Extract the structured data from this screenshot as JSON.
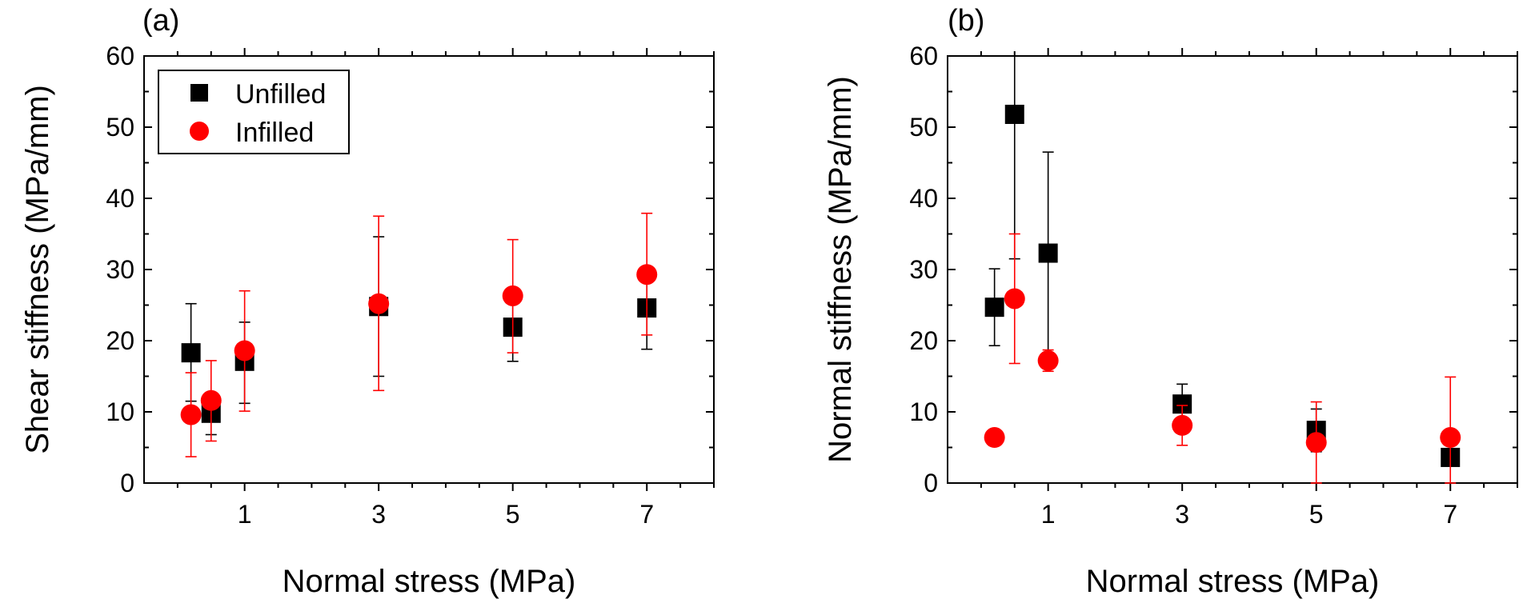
{
  "chart_data": [
    {
      "type": "scatter",
      "panel_label": "(a)",
      "xlabel": "Normal stress (MPa)",
      "ylabel": "Shear stiffness (MPa/mm)",
      "xlim": [
        -0.5,
        8
      ],
      "ylim": [
        0,
        60
      ],
      "xticks": [
        1,
        3,
        5,
        7
      ],
      "yticks": [
        0,
        10,
        20,
        30,
        40,
        50,
        60
      ],
      "legend": "top-left",
      "series": [
        {
          "name": "Unfilled",
          "marker": "square",
          "color": "#000000",
          "points": [
            {
              "x": 0.2,
              "y": 18.3,
              "low": 11.5,
              "high": 25.2
            },
            {
              "x": 0.5,
              "y": 9.8,
              "low": 6.8,
              "high": 12.6
            },
            {
              "x": 1,
              "y": 17.1,
              "low": 11.2,
              "high": 22.6
            },
            {
              "x": 3,
              "y": 24.8,
              "low": 15.0,
              "high": 34.6
            },
            {
              "x": 5,
              "y": 21.9,
              "low": 17.1,
              "high": 26.5
            },
            {
              "x": 7,
              "y": 24.6,
              "low": 18.8,
              "high": 30.4
            }
          ]
        },
        {
          "name": "Infilled",
          "marker": "circle",
          "color": "#ff0000",
          "points": [
            {
              "x": 0.2,
              "y": 9.6,
              "low": 3.7,
              "high": 15.5
            },
            {
              "x": 0.5,
              "y": 11.6,
              "low": 5.9,
              "high": 17.2
            },
            {
              "x": 1,
              "y": 18.6,
              "low": 10.1,
              "high": 27.0
            },
            {
              "x": 3,
              "y": 25.2,
              "low": 13.0,
              "high": 37.5
            },
            {
              "x": 5,
              "y": 26.3,
              "low": 18.3,
              "high": 34.2
            },
            {
              "x": 7,
              "y": 29.3,
              "low": 20.8,
              "high": 37.9
            }
          ]
        }
      ]
    },
    {
      "type": "scatter",
      "panel_label": "(b)",
      "xlabel": "Normal stress (MPa)",
      "ylabel": "Normal stiffness (MPa/mm)",
      "xlim": [
        -0.5,
        8
      ],
      "ylim": [
        0,
        60
      ],
      "xticks": [
        1,
        3,
        5,
        7
      ],
      "yticks": [
        0,
        10,
        20,
        30,
        40,
        50,
        60
      ],
      "series": [
        {
          "name": "Unfilled",
          "marker": "square",
          "color": "#000000",
          "points": [
            {
              "x": 0.2,
              "y": 24.7,
              "low": 19.3,
              "high": 30.1
            },
            {
              "x": 0.5,
              "y": 51.8,
              "low": 31.5,
              "high": 60
            },
            {
              "x": 1,
              "y": 32.3,
              "low": 18.3,
              "high": 46.5
            },
            {
              "x": 3,
              "y": 11.1,
              "low": 8.4,
              "high": 13.9
            },
            {
              "x": 5,
              "y": 7.4,
              "low": 4.4,
              "high": 10.4
            },
            {
              "x": 7,
              "y": 3.6,
              "low": 3.6,
              "high": 3.6
            }
          ]
        },
        {
          "name": "Infilled",
          "marker": "circle",
          "color": "#ff0000",
          "points": [
            {
              "x": 0.2,
              "y": 6.4,
              "low": 6.4,
              "high": 6.4
            },
            {
              "x": 0.5,
              "y": 25.9,
              "low": 16.8,
              "high": 35.0
            },
            {
              "x": 1,
              "y": 17.2,
              "low": 15.7,
              "high": 18.7
            },
            {
              "x": 3,
              "y": 8.1,
              "low": 5.3,
              "high": 10.9
            },
            {
              "x": 5,
              "y": 5.7,
              "low": 0,
              "high": 11.4
            },
            {
              "x": 7,
              "y": 6.4,
              "low": 0,
              "high": 14.9
            }
          ]
        }
      ]
    }
  ]
}
